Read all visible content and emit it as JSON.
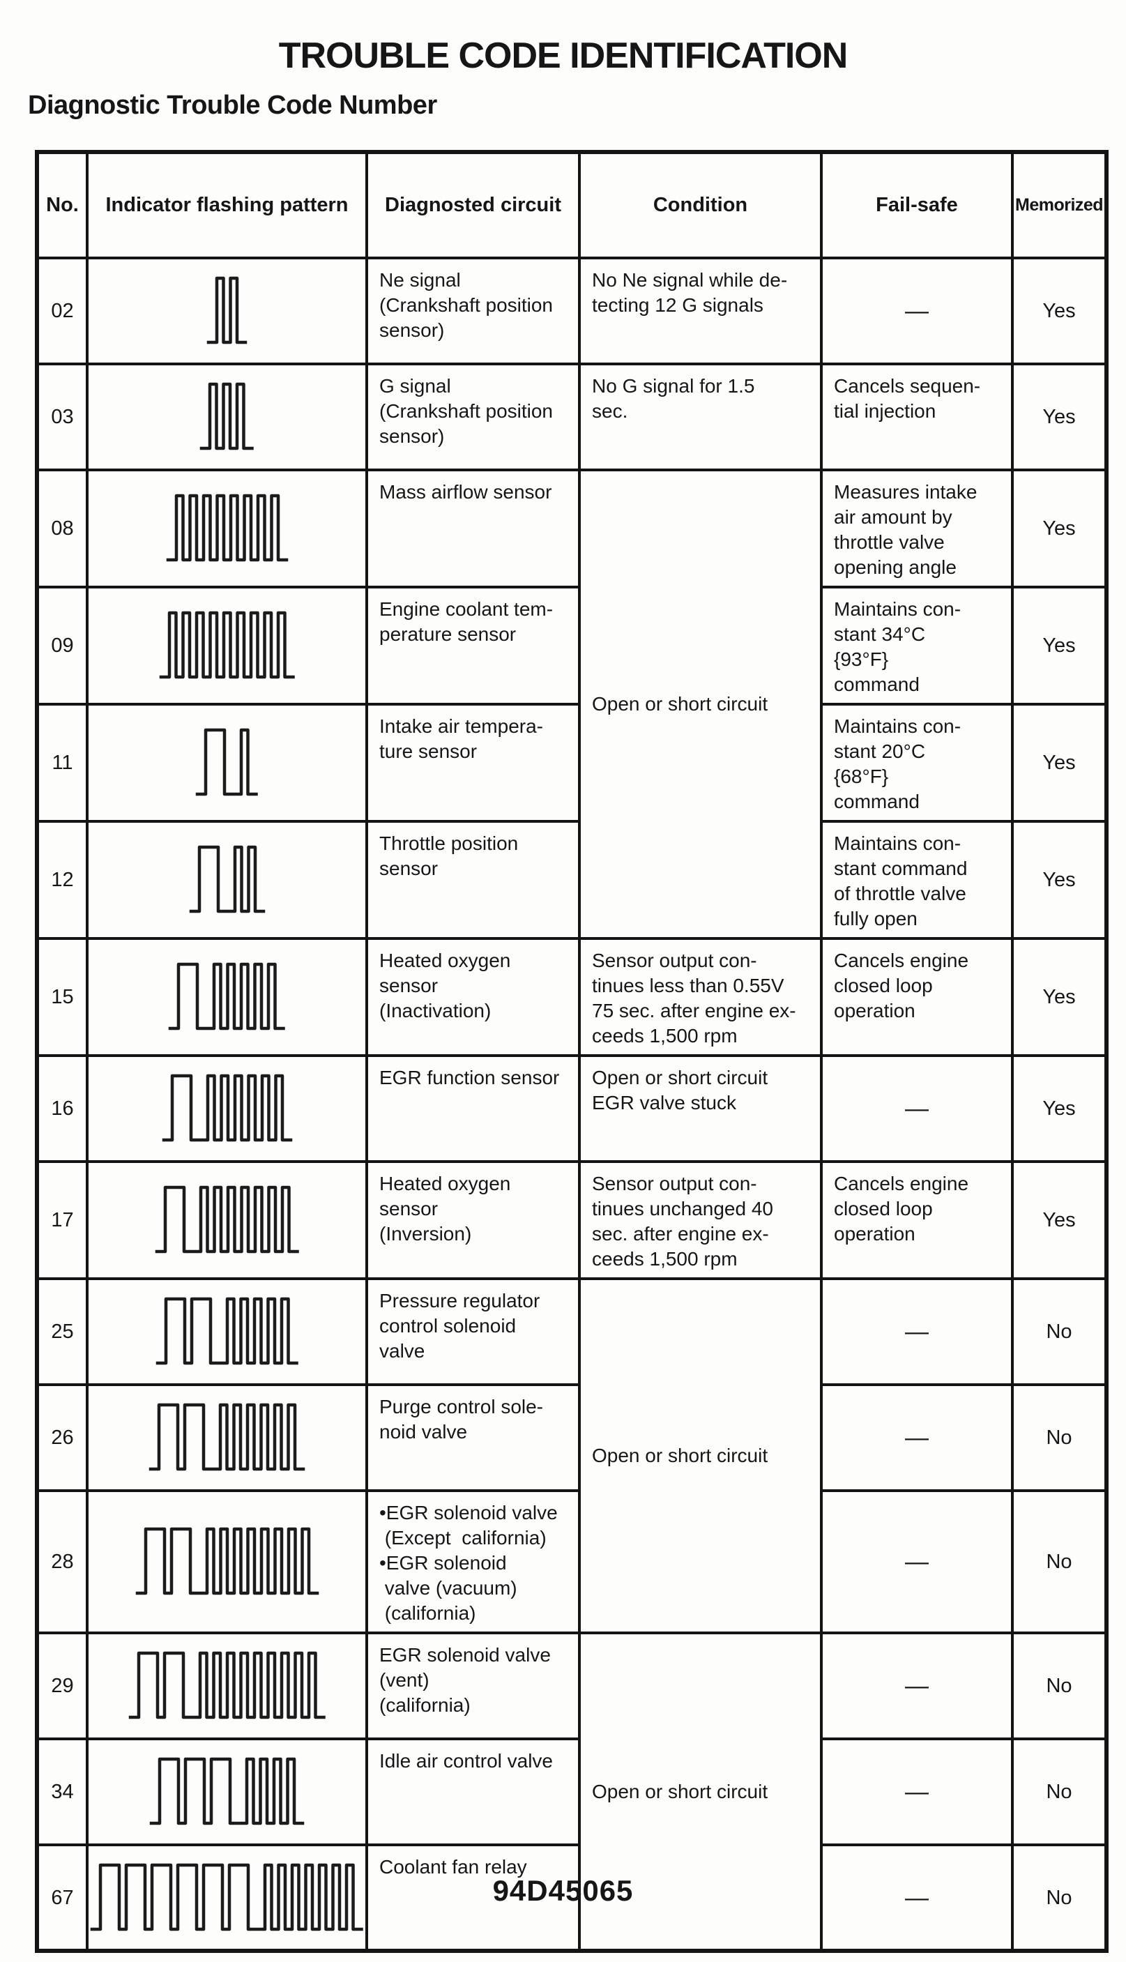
{
  "page": {
    "title": "TROUBLE CODE IDENTIFICATION",
    "subtitle": "Diagnostic Trouble Code Number",
    "footer_code": "94D45065"
  },
  "colors": {
    "ink": "#161616",
    "paper": "#fdfdfc"
  },
  "table": {
    "headers": [
      "No.",
      "Indicator flashing pattern",
      "Diagnosted circuit",
      "Condition",
      "Fail-safe",
      "Memorized"
    ],
    "rows": [
      {
        "no": "02",
        "pattern": {
          "long": 0,
          "short": 2
        },
        "circuit": "Ne signal\n(Crankshaft position\nsensor)",
        "condition": "No Ne signal while de-\ntecting 12 G signals",
        "failsafe": "—",
        "memorized": "Yes"
      },
      {
        "no": "03",
        "pattern": {
          "long": 0,
          "short": 3
        },
        "circuit": "G signal\n(Crankshaft position\nsensor)",
        "condition": "No G signal for 1.5\nsec.",
        "failsafe": "Cancels sequen-\ntial injection",
        "memorized": "Yes"
      },
      {
        "no": "08",
        "pattern": {
          "long": 0,
          "short": 8
        },
        "circuit": "Mass airflow sensor",
        "condition": "Open or short circuit",
        "failsafe": "Measures intake\nair amount by\nthrottle valve\nopening angle",
        "memorized": "Yes"
      },
      {
        "no": "09",
        "pattern": {
          "long": 0,
          "short": 9
        },
        "circuit": "Engine coolant tem-\nperature sensor",
        "condition": null,
        "failsafe": "Maintains con-\nstant 34°C\n{93°F}\ncommand",
        "memorized": "Yes"
      },
      {
        "no": "11",
        "pattern": {
          "long": 1,
          "short": 1
        },
        "circuit": "Intake air tempera-\nture sensor",
        "condition": null,
        "failsafe": "Maintains con-\nstant 20°C\n{68°F}\ncommand",
        "memorized": "Yes"
      },
      {
        "no": "12",
        "pattern": {
          "long": 1,
          "short": 2
        },
        "circuit": "Throttle position\nsensor",
        "condition": null,
        "failsafe": "Maintains con-\nstant command\nof throttle valve\nfully open",
        "memorized": "Yes"
      },
      {
        "no": "15",
        "pattern": {
          "long": 1,
          "short": 5
        },
        "circuit": "Heated oxygen\nsensor\n(Inactivation)",
        "condition": "Sensor output con-\ntinues less than 0.55V\n75 sec. after engine ex-\nceeds 1,500 rpm",
        "failsafe": "Cancels engine\nclosed loop\noperation",
        "memorized": "Yes"
      },
      {
        "no": "16",
        "pattern": {
          "long": 1,
          "short": 6
        },
        "circuit": "EGR function sensor",
        "condition": "Open or short circuit\nEGR valve stuck",
        "failsafe": "—",
        "memorized": "Yes"
      },
      {
        "no": "17",
        "pattern": {
          "long": 1,
          "short": 7
        },
        "circuit": "Heated oxygen\nsensor\n(Inversion)",
        "condition": "Sensor output con-\ntinues unchanged 40\nsec. after engine ex-\nceeds 1,500 rpm",
        "failsafe": "Cancels engine\nclosed loop\noperation",
        "memorized": "Yes"
      },
      {
        "no": "25",
        "pattern": {
          "long": 2,
          "short": 5
        },
        "circuit": "Pressure regulator\ncontrol solenoid\nvalve",
        "condition": "Open or short circuit",
        "failsafe": "—",
        "memorized": "No"
      },
      {
        "no": "26",
        "pattern": {
          "long": 2,
          "short": 6
        },
        "circuit": "Purge control sole-\nnoid valve",
        "condition": null,
        "failsafe": "—",
        "memorized": "No"
      },
      {
        "no": "28",
        "pattern": {
          "long": 2,
          "short": 8
        },
        "circuit": "•EGR solenoid valve\n (Except  california)\n•EGR solenoid\n valve (vacuum)\n (california)",
        "condition": null,
        "failsafe": "—",
        "memorized": "No"
      },
      {
        "no": "29",
        "pattern": {
          "long": 2,
          "short": 9
        },
        "circuit": "EGR solenoid valve\n(vent)\n(california)",
        "condition": "Open or short circuit",
        "failsafe": "—",
        "memorized": "No"
      },
      {
        "no": "34",
        "pattern": {
          "long": 3,
          "short": 4
        },
        "circuit": "Idle air control valve",
        "condition": null,
        "failsafe": "—",
        "memorized": "No"
      },
      {
        "no": "67",
        "pattern": {
          "long": 6,
          "short": 7
        },
        "circuit": "Coolant fan relay",
        "condition": null,
        "failsafe": "—",
        "memorized": "No"
      }
    ]
  }
}
